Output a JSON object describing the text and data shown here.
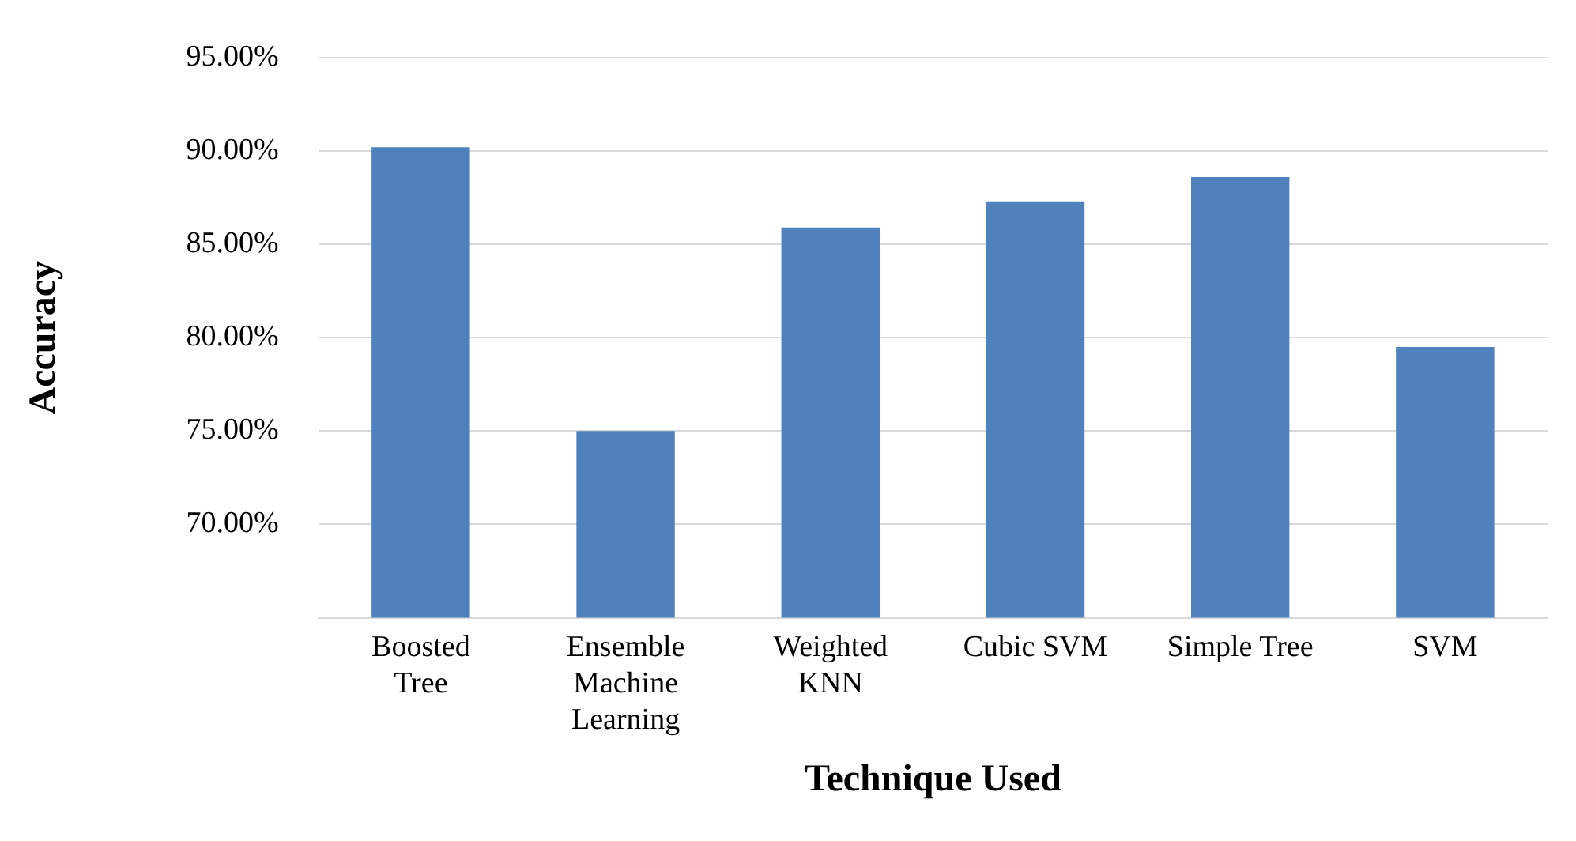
{
  "chart_data": {
    "type": "bar",
    "xlabel": "Technique Used",
    "ylabel": "Accuracy",
    "categories": [
      "Boosted Tree",
      "Ensemble Machine Learning",
      "Weighted KNN",
      "Cubic SVM",
      "Simple Tree",
      "SVM"
    ],
    "values": [
      90.2,
      75.0,
      85.9,
      87.3,
      88.6,
      79.5
    ],
    "color": "#4f81bd",
    "ylim": [
      65,
      95
    ],
    "yticks": [
      {
        "value": 65,
        "label": null
      },
      {
        "value": 70,
        "label": "70.00%"
      },
      {
        "value": 75,
        "label": "75.00%"
      },
      {
        "value": 80,
        "label": "80.00%"
      },
      {
        "value": 85,
        "label": "85.00%"
      },
      {
        "value": 90,
        "label": "90.00%"
      },
      {
        "value": 95,
        "label": "95.00%"
      }
    ],
    "grid": "y"
  }
}
